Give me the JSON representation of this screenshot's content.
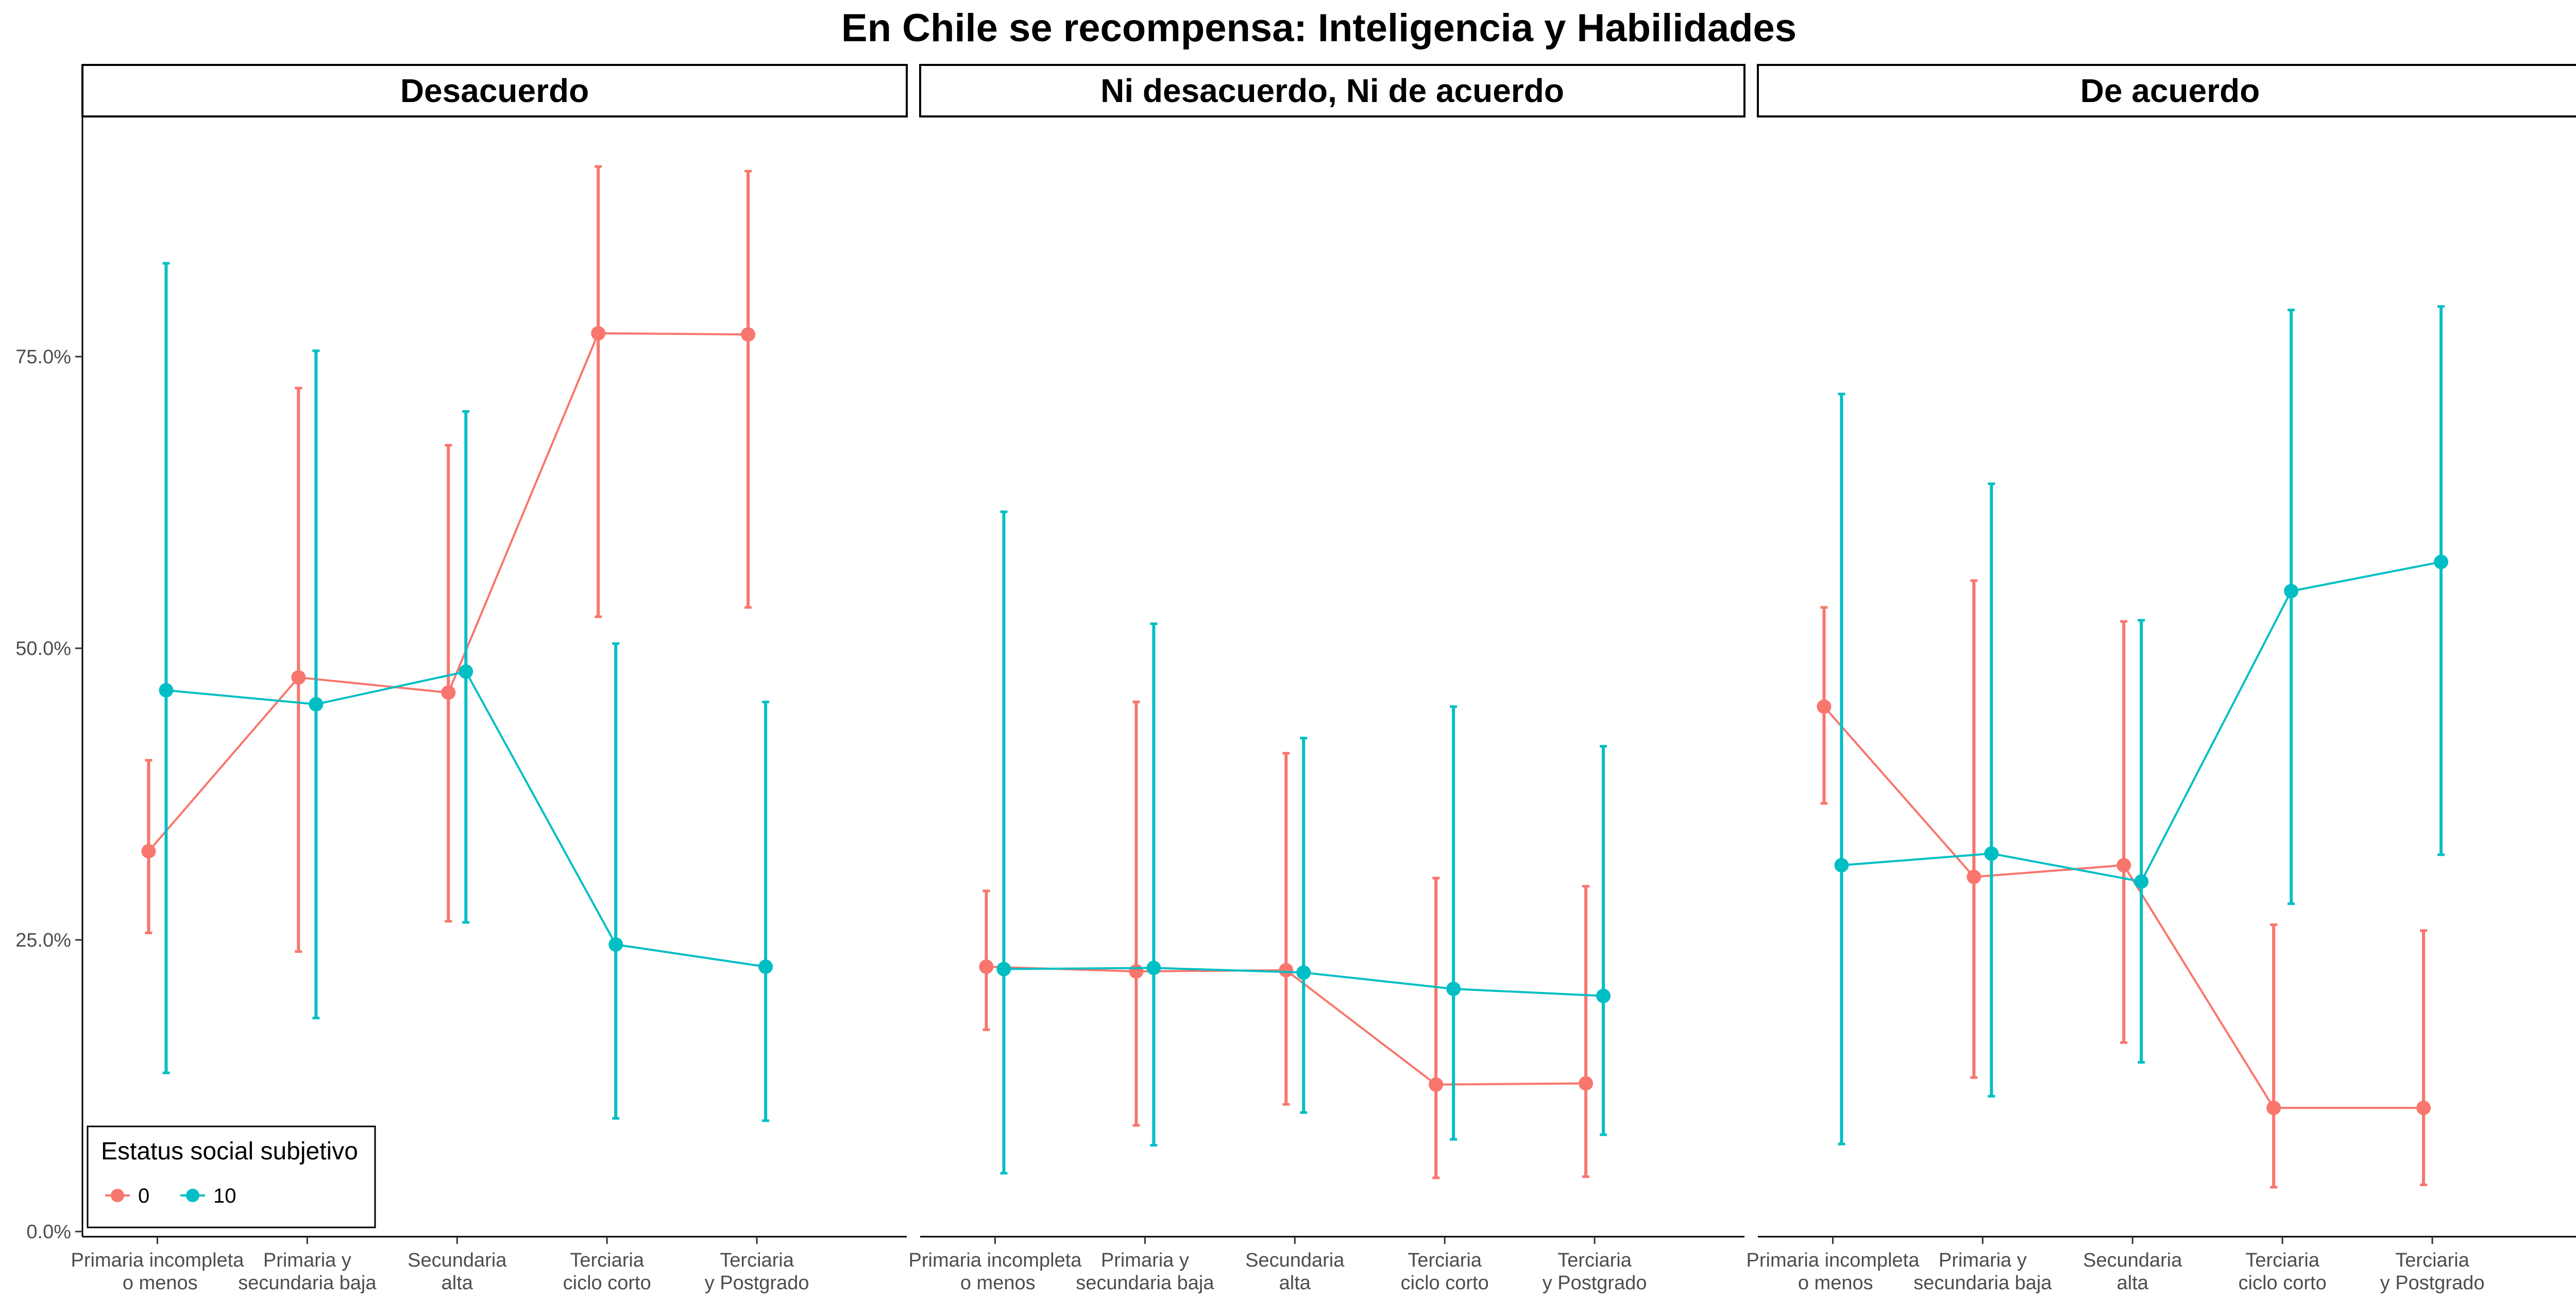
{
  "chart_data": {
    "type": "line",
    "title": "En Chile se recompensa: Inteligencia y Habilidades",
    "facets": [
      "Desacuerdo",
      "Ni desacuerdo, Ni de acuerdo",
      "De acuerdo"
    ],
    "categories": [
      [
        "Primaria incompleta",
        " o  menos"
      ],
      [
        "Primaria y",
        "secundaria baja"
      ],
      [
        "Secundaria",
        "alta"
      ],
      [
        "Terciaria",
        "ciclo corto"
      ],
      [
        "Terciaria",
        "y Postgrado"
      ]
    ],
    "y_ticks": [
      0,
      0.25,
      0.5,
      0.75
    ],
    "y_tick_labels": [
      "0.0%",
      "25.0%",
      "50.0%",
      "75.0%"
    ],
    "ylim": [
      0,
      0.955
    ],
    "legend": {
      "title": "Estatus social subjetivo",
      "position": "bottom-left",
      "entries": [
        {
          "label": "0",
          "color": "#F8766D"
        },
        {
          "label": "10",
          "color": "#00BFC4"
        }
      ]
    },
    "panels": [
      {
        "facet": "Desacuerdo",
        "series": [
          {
            "name": "0",
            "color": "#F8766D",
            "values": [
              0.326,
              0.475,
              0.462,
              0.77,
              0.769
            ],
            "lower": [
              0.256,
              0.24,
              0.266,
              0.527,
              0.535
            ],
            "upper": [
              0.404,
              0.723,
              0.674,
              0.913,
              0.909
            ]
          },
          {
            "name": "10",
            "color": "#00BFC4",
            "values": [
              0.464,
              0.452,
              0.48,
              0.246,
              0.227
            ],
            "lower": [
              0.136,
              0.183,
              0.265,
              0.097,
              0.095
            ],
            "upper": [
              0.83,
              0.755,
              0.703,
              0.504,
              0.454
            ]
          }
        ]
      },
      {
        "facet": "Ni desacuerdo, Ni de acuerdo",
        "series": [
          {
            "name": "0",
            "color": "#F8766D",
            "values": [
              0.227,
              0.223,
              0.224,
              0.126,
              0.127
            ],
            "lower": [
              0.173,
              0.091,
              0.109,
              0.046,
              0.047
            ],
            "upper": [
              0.292,
              0.454,
              0.41,
              0.303,
              0.296
            ]
          },
          {
            "name": "10",
            "color": "#00BFC4",
            "values": [
              0.225,
              0.226,
              0.222,
              0.208,
              0.202
            ],
            "lower": [
              0.05,
              0.074,
              0.102,
              0.079,
              0.083
            ],
            "upper": [
              0.617,
              0.521,
              0.423,
              0.45,
              0.416
            ]
          }
        ]
      },
      {
        "facet": "De acuerdo",
        "series": [
          {
            "name": "0",
            "color": "#F8766D",
            "values": [
              0.45,
              0.304,
              0.314,
              0.106,
              0.106
            ],
            "lower": [
              0.367,
              0.132,
              0.162,
              0.038,
              0.04
            ],
            "upper": [
              0.535,
              0.558,
              0.523,
              0.263,
              0.258
            ]
          },
          {
            "name": "10",
            "color": "#00BFC4",
            "values": [
              0.314,
              0.324,
              0.3,
              0.549,
              0.574
            ],
            "lower": [
              0.075,
              0.116,
              0.145,
              0.281,
              0.323
            ],
            "upper": [
              0.718,
              0.641,
              0.524,
              0.79,
              0.793
            ]
          }
        ]
      }
    ]
  }
}
